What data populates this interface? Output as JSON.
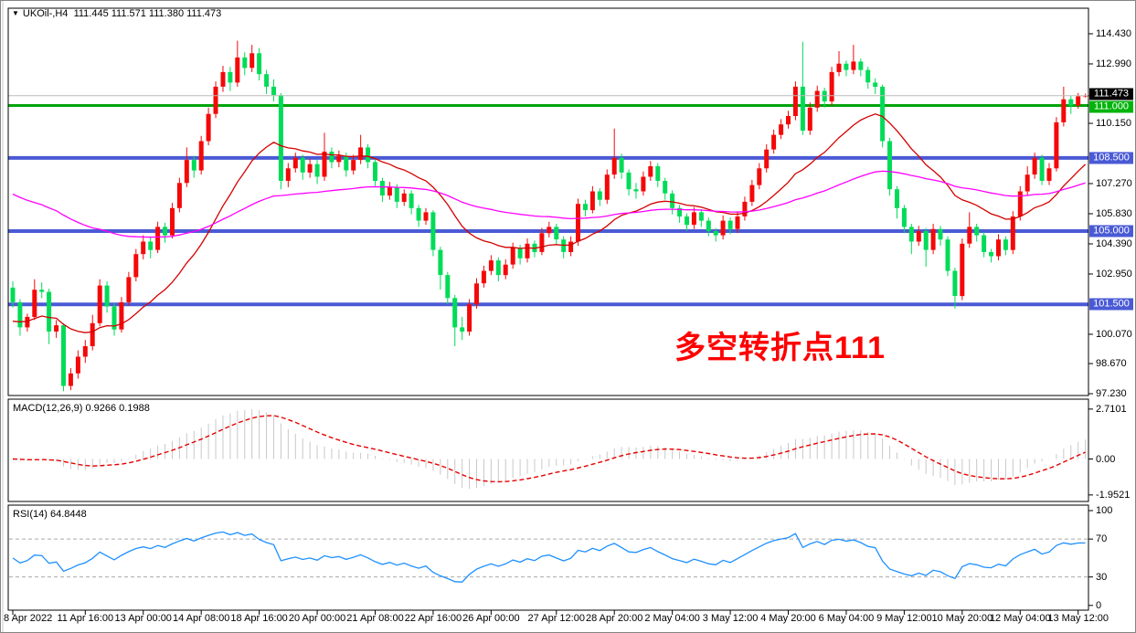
{
  "window": {
    "symbol_tf": "UKOil-,H4",
    "ohlc_text": "111.445 111.571 111.380 111.473"
  },
  "annotation": {
    "text": "多空转折点111",
    "color": "#FF0000"
  },
  "macd_panel": {
    "label": "MACD(12,26,9)",
    "values": "0.9266 0.1988",
    "axis_labels": [
      2.7101,
      0.0,
      -1.9521
    ],
    "axis_texts": [
      "2.7101",
      "0.00",
      "-1.9521"
    ]
  },
  "rsi_panel": {
    "label": "RSI(14) 64.8448",
    "axis_labels": [
      100,
      70,
      30,
      0
    ],
    "axis_texts": [
      "100",
      "70",
      "30",
      "0"
    ],
    "levels": [
      70,
      30
    ]
  },
  "price_axis": {
    "labels": [
      "114.430",
      "112.990",
      "110.150",
      "107.270",
      "105.830",
      "104.390",
      "102.950",
      "100.070",
      "98.670",
      "97.230"
    ],
    "values": [
      114.43,
      112.99,
      110.15,
      107.27,
      105.83,
      104.39,
      102.95,
      100.07,
      98.67,
      97.23
    ],
    "badges": [
      {
        "label": "111.473",
        "price": 111.473,
        "bg": "#000000"
      },
      {
        "label": "111.000",
        "price": 111.0,
        "bg": "#00B40A"
      },
      {
        "label": "108.500",
        "price": 108.5,
        "bg": "#4A5AD5"
      },
      {
        "label": "105.000",
        "price": 105.0,
        "bg": "#4A5AD5"
      },
      {
        "label": "101.500",
        "price": 101.5,
        "bg": "#4A5AD5"
      }
    ]
  },
  "x_axis": {
    "ticks": [
      {
        "bar": 0,
        "label": "8 Apr 2022"
      },
      {
        "bar": 10,
        "label": "11 Apr 16:00"
      },
      {
        "bar": 18,
        "label": "13 Apr 00:00"
      },
      {
        "bar": 26,
        "label": "14 Apr 08:00"
      },
      {
        "bar": 34,
        "label": "18 Apr 16:00"
      },
      {
        "bar": 42,
        "label": "20 Apr 00:00"
      },
      {
        "bar": 50,
        "label": "21 Apr 08:00"
      },
      {
        "bar": 58,
        "label": "22 Apr 16:00"
      },
      {
        "bar": 66,
        "label": "26 Apr 00:00"
      },
      {
        "bar": 75,
        "label": "27 Apr 12:00"
      },
      {
        "bar": 83,
        "label": "28 Apr 20:00"
      },
      {
        "bar": 91,
        "label": "2 May 04:00"
      },
      {
        "bar": 99,
        "label": "3 May 12:00"
      },
      {
        "bar": 107,
        "label": "4 May 20:00"
      },
      {
        "bar": 115,
        "label": "6 May 04:00"
      },
      {
        "bar": 123,
        "label": "9 May 12:00"
      },
      {
        "bar": 131,
        "label": "10 May 20:00"
      },
      {
        "bar": 139,
        "label": "12 May 04:00"
      },
      {
        "bar": 147,
        "label": "13 May 12:00"
      }
    ]
  },
  "chart_data": {
    "type": "candlestick",
    "symbol": "UKOil-",
    "timeframe": "H4",
    "current_price": 111.473,
    "up_color": "#F40808",
    "down_color": "#00DC58",
    "ma_fast": {
      "period": 21,
      "color": "#D40000",
      "seed": 100.6
    },
    "ma_slow": {
      "period": 80,
      "color": "#FF00FF",
      "seed": 106.9
    },
    "macd": {
      "fast": 12,
      "slow": 26,
      "signal": 9,
      "main": 0.9266,
      "signal_val": 0.1988,
      "hist_color": "#C8C8C8",
      "signal_color": "#E60000",
      "range": [
        2.7101,
        -1.9521
      ]
    },
    "rsi": {
      "period": 14,
      "value": 64.8448,
      "color": "#1E90FF"
    },
    "hlines": [
      {
        "price": 111.473,
        "color": "#BBBBBB",
        "width": 1
      },
      {
        "price": 111.0,
        "color": "#00A30A",
        "width": 3
      },
      {
        "price": 108.5,
        "color": "#4A5AD5",
        "width": 4
      },
      {
        "price": 105.0,
        "color": "#4A5AD5",
        "width": 4
      },
      {
        "price": 101.5,
        "color": "#4A5AD5",
        "width": 4
      }
    ],
    "candles": [
      [
        102.3,
        102.6,
        101.35,
        101.6
      ],
      [
        101.6,
        101.75,
        100.0,
        100.4
      ],
      [
        100.4,
        101.05,
        100.2,
        100.9
      ],
      [
        100.9,
        102.7,
        100.75,
        102.2
      ],
      [
        102.2,
        102.55,
        101.8,
        102.1
      ],
      [
        102.1,
        102.25,
        99.6,
        100.2
      ],
      [
        100.2,
        100.75,
        99.9,
        100.5
      ],
      [
        100.5,
        100.6,
        97.35,
        97.6
      ],
      [
        97.6,
        98.45,
        97.4,
        98.2
      ],
      [
        98.2,
        99.3,
        97.95,
        99.0
      ],
      [
        99.0,
        99.8,
        98.7,
        99.5
      ],
      [
        99.5,
        101.0,
        99.3,
        100.6
      ],
      [
        100.6,
        102.7,
        100.45,
        102.4
      ],
      [
        102.4,
        102.6,
        101.1,
        101.4
      ],
      [
        101.4,
        101.55,
        100.0,
        100.3
      ],
      [
        100.3,
        101.85,
        100.15,
        101.6
      ],
      [
        101.6,
        103.05,
        101.45,
        102.8
      ],
      [
        102.8,
        104.15,
        102.6,
        103.9
      ],
      [
        103.9,
        104.8,
        103.65,
        104.5
      ],
      [
        104.5,
        104.7,
        103.7,
        104.1
      ],
      [
        104.1,
        105.45,
        103.95,
        105.2
      ],
      [
        105.2,
        105.4,
        104.45,
        104.8
      ],
      [
        104.8,
        106.35,
        104.65,
        106.1
      ],
      [
        106.1,
        107.55,
        105.9,
        107.3
      ],
      [
        107.3,
        109.0,
        107.1,
        108.4
      ],
      [
        108.4,
        108.6,
        107.55,
        107.9
      ],
      [
        107.9,
        109.55,
        107.7,
        109.3
      ],
      [
        109.3,
        110.9,
        109.1,
        110.6
      ],
      [
        110.6,
        112.15,
        110.4,
        111.9
      ],
      [
        111.9,
        112.9,
        111.65,
        112.6
      ],
      [
        112.6,
        112.85,
        111.7,
        112.1
      ],
      [
        112.1,
        114.1,
        111.9,
        113.3
      ],
      [
        113.3,
        113.55,
        112.45,
        112.8
      ],
      [
        112.8,
        113.9,
        112.6,
        113.5
      ],
      [
        113.5,
        113.75,
        112.2,
        112.5
      ],
      [
        112.5,
        112.7,
        111.55,
        111.9
      ],
      [
        111.9,
        112.25,
        111.2,
        111.5
      ],
      [
        111.5,
        111.6,
        107.0,
        107.4
      ],
      [
        107.4,
        108.25,
        107.1,
        108.0
      ],
      [
        108.0,
        108.75,
        107.8,
        108.5
      ],
      [
        108.5,
        108.65,
        107.45,
        107.8
      ],
      [
        107.8,
        108.45,
        107.55,
        108.2
      ],
      [
        108.2,
        108.4,
        107.25,
        107.6
      ],
      [
        107.6,
        109.7,
        107.4,
        108.8
      ],
      [
        108.8,
        109.0,
        108.0,
        108.3
      ],
      [
        108.3,
        108.85,
        108.05,
        108.6
      ],
      [
        108.6,
        108.75,
        107.6,
        107.9
      ],
      [
        107.9,
        108.65,
        107.7,
        108.4
      ],
      [
        108.4,
        109.6,
        108.2,
        109.0
      ],
      [
        109.0,
        109.15,
        108.0,
        108.3
      ],
      [
        108.3,
        108.45,
        107.15,
        107.4
      ],
      [
        107.4,
        107.55,
        106.4,
        106.7
      ],
      [
        106.7,
        107.35,
        106.5,
        107.1
      ],
      [
        107.1,
        107.25,
        106.1,
        106.4
      ],
      [
        106.4,
        107.0,
        106.2,
        106.8
      ],
      [
        106.8,
        106.95,
        105.8,
        106.1
      ],
      [
        106.1,
        106.25,
        105.2,
        105.5
      ],
      [
        105.5,
        106.1,
        105.3,
        105.9
      ],
      [
        105.9,
        106.0,
        103.8,
        104.1
      ],
      [
        104.1,
        104.25,
        102.2,
        102.9
      ],
      [
        102.9,
        103.05,
        101.5,
        101.8
      ],
      [
        101.8,
        101.95,
        99.5,
        100.4
      ],
      [
        100.4,
        100.9,
        99.8,
        100.2
      ],
      [
        100.2,
        101.75,
        100.0,
        101.5
      ],
      [
        101.5,
        102.75,
        101.3,
        102.5
      ],
      [
        102.5,
        103.35,
        102.3,
        103.1
      ],
      [
        103.1,
        103.85,
        102.9,
        103.6
      ],
      [
        103.6,
        103.75,
        102.6,
        102.9
      ],
      [
        102.9,
        103.65,
        102.7,
        103.4
      ],
      [
        103.4,
        104.45,
        103.2,
        104.2
      ],
      [
        104.2,
        104.35,
        103.4,
        103.7
      ],
      [
        103.7,
        104.65,
        103.5,
        104.4
      ],
      [
        104.4,
        104.55,
        103.75,
        104.0
      ],
      [
        104.0,
        105.15,
        103.85,
        104.9
      ],
      [
        104.9,
        105.45,
        104.7,
        105.2
      ],
      [
        105.2,
        105.35,
        104.35,
        104.6
      ],
      [
        104.6,
        104.75,
        103.7,
        104.0
      ],
      [
        104.0,
        104.75,
        103.8,
        104.5
      ],
      [
        104.5,
        106.55,
        104.3,
        106.3
      ],
      [
        106.3,
        106.5,
        105.7,
        106.0
      ],
      [
        106.0,
        107.15,
        105.85,
        106.9
      ],
      [
        106.9,
        107.05,
        106.2,
        106.5
      ],
      [
        106.5,
        107.95,
        106.3,
        107.7
      ],
      [
        107.7,
        109.9,
        107.5,
        108.5
      ],
      [
        108.5,
        108.7,
        107.5,
        107.8
      ],
      [
        107.8,
        107.95,
        106.7,
        107.0
      ],
      [
        107.0,
        107.3,
        106.55,
        106.9
      ],
      [
        106.9,
        107.85,
        106.7,
        107.6
      ],
      [
        107.6,
        108.35,
        107.4,
        108.1
      ],
      [
        108.1,
        108.25,
        107.1,
        107.4
      ],
      [
        107.4,
        107.55,
        106.5,
        106.8
      ],
      [
        106.8,
        106.95,
        105.8,
        106.1
      ],
      [
        106.1,
        106.25,
        105.4,
        105.7
      ],
      [
        105.7,
        105.85,
        105.0,
        105.3
      ],
      [
        105.3,
        106.15,
        105.1,
        105.9
      ],
      [
        105.9,
        106.05,
        105.2,
        105.5
      ],
      [
        105.5,
        105.65,
        104.75,
        105.0
      ],
      [
        105.0,
        105.15,
        104.5,
        104.8
      ],
      [
        104.8,
        105.75,
        104.6,
        105.5
      ],
      [
        105.5,
        105.65,
        104.85,
        105.1
      ],
      [
        105.1,
        105.95,
        104.9,
        105.7
      ],
      [
        105.7,
        106.65,
        105.5,
        106.4
      ],
      [
        106.4,
        107.45,
        106.2,
        107.2
      ],
      [
        107.2,
        108.25,
        107.0,
        108.0
      ],
      [
        108.0,
        109.15,
        107.8,
        108.9
      ],
      [
        108.9,
        109.85,
        108.7,
        109.6
      ],
      [
        109.6,
        110.35,
        109.4,
        110.1
      ],
      [
        110.1,
        110.75,
        109.9,
        110.5
      ],
      [
        110.5,
        112.15,
        110.3,
        111.9
      ],
      [
        111.9,
        114.05,
        109.6,
        109.8
      ],
      [
        109.8,
        111.15,
        109.6,
        110.9
      ],
      [
        110.9,
        111.95,
        110.7,
        111.7
      ],
      [
        111.7,
        111.85,
        110.9,
        111.2
      ],
      [
        111.2,
        112.85,
        111.0,
        112.6
      ],
      [
        112.6,
        113.6,
        112.4,
        113.0
      ],
      [
        113.0,
        113.15,
        112.4,
        112.7
      ],
      [
        112.7,
        113.9,
        112.5,
        113.1
      ],
      [
        113.1,
        113.25,
        112.4,
        112.7
      ],
      [
        112.7,
        112.85,
        111.8,
        112.1
      ],
      [
        112.1,
        112.3,
        111.55,
        111.9
      ],
      [
        111.9,
        112.0,
        109.0,
        109.3
      ],
      [
        109.3,
        109.45,
        106.7,
        107.0
      ],
      [
        107.0,
        107.15,
        105.6,
        106.1
      ],
      [
        106.1,
        106.25,
        104.9,
        105.2
      ],
      [
        105.2,
        105.35,
        103.9,
        104.5
      ],
      [
        104.5,
        105.25,
        104.3,
        105.0
      ],
      [
        105.0,
        105.15,
        103.3,
        104.1
      ],
      [
        104.1,
        105.35,
        103.9,
        105.1
      ],
      [
        105.1,
        105.25,
        104.3,
        104.6
      ],
      [
        104.6,
        104.75,
        102.85,
        103.1
      ],
      [
        103.1,
        103.25,
        101.3,
        101.9
      ],
      [
        101.9,
        104.65,
        101.7,
        104.4
      ],
      [
        104.4,
        105.9,
        104.2,
        105.2
      ],
      [
        105.2,
        105.35,
        104.5,
        104.8
      ],
      [
        104.8,
        104.95,
        103.75,
        104.0
      ],
      [
        104.0,
        104.15,
        103.5,
        103.8
      ],
      [
        103.8,
        104.85,
        103.6,
        104.6
      ],
      [
        104.6,
        104.75,
        103.85,
        104.1
      ],
      [
        104.1,
        105.95,
        103.9,
        105.7
      ],
      [
        105.7,
        107.15,
        105.5,
        106.9
      ],
      [
        106.9,
        108.1,
        106.7,
        107.7
      ],
      [
        107.7,
        108.75,
        107.5,
        108.5
      ],
      [
        108.5,
        108.65,
        107.2,
        107.4
      ],
      [
        107.4,
        108.25,
        107.2,
        108.0
      ],
      [
        108.0,
        110.45,
        107.85,
        110.2
      ],
      [
        110.2,
        111.9,
        110.0,
        111.3
      ],
      [
        111.3,
        111.45,
        110.6,
        111.0
      ],
      [
        111.0,
        111.6,
        110.85,
        111.445
      ],
      [
        111.445,
        111.571,
        111.38,
        111.473
      ]
    ]
  }
}
